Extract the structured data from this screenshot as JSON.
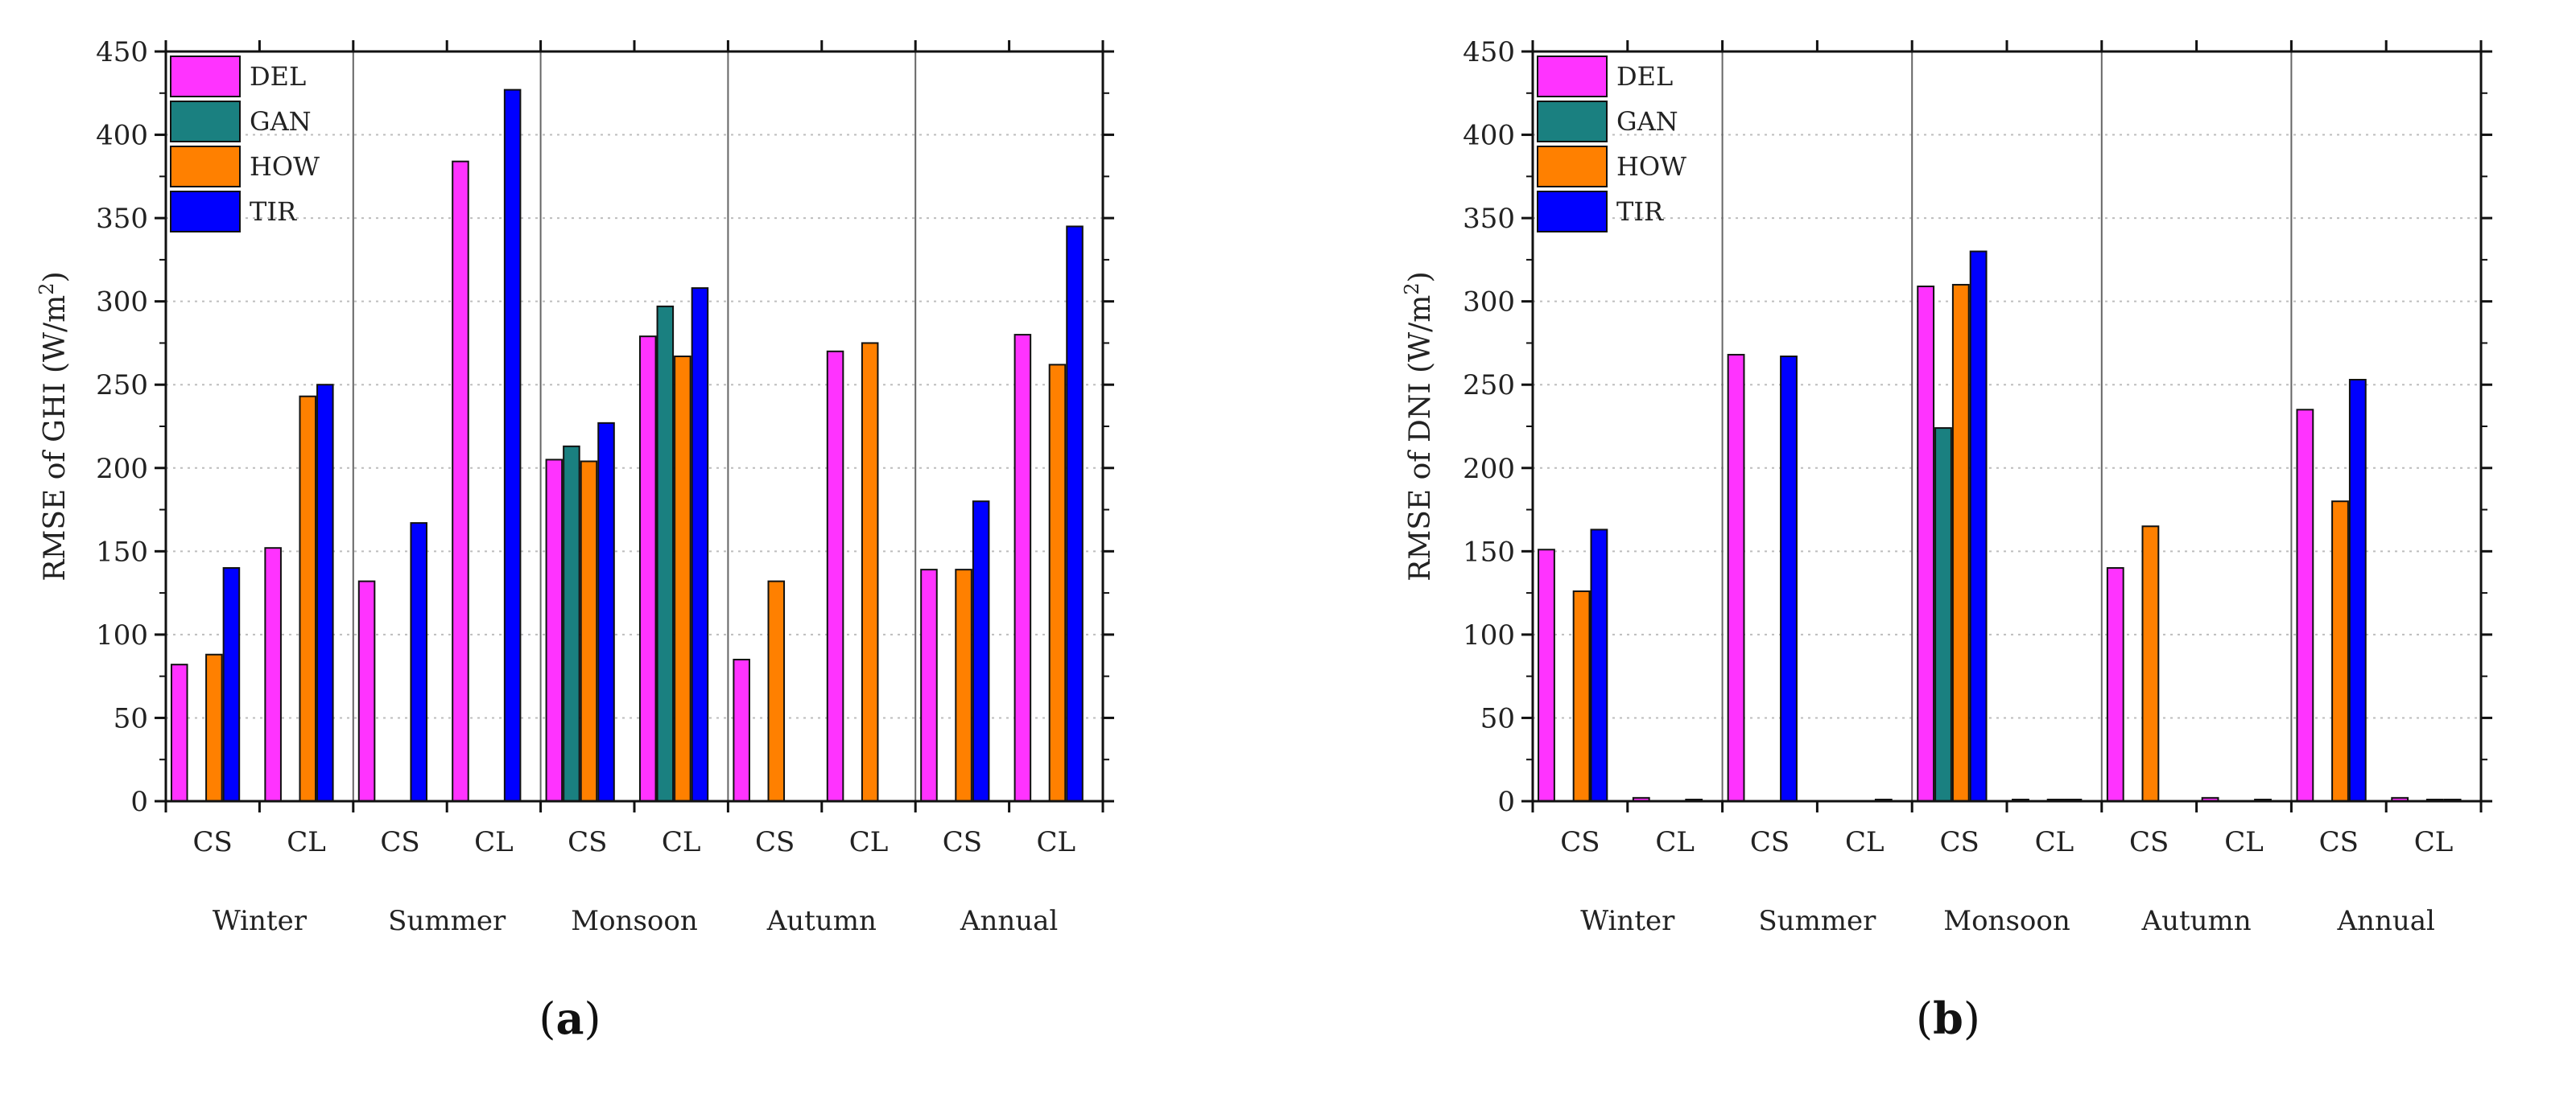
{
  "chart_data": [
    {
      "type": "bar",
      "panel_label": "a",
      "ylabel": "RMSE of GHI (W/m²)",
      "ylabel_parts": {
        "text": "RMSE of GHI (W/m",
        "sup": "2",
        "close": ")"
      },
      "ylim": [
        0,
        450
      ],
      "yticks": [
        0,
        50,
        100,
        150,
        200,
        250,
        300,
        350,
        400,
        450
      ],
      "groups": [
        "Winter",
        "Summer",
        "Monsoon",
        "Autumn",
        "Annual"
      ],
      "sub_categories": [
        "CS",
        "CL"
      ],
      "categories": [
        "CS",
        "CL",
        "CS",
        "CL",
        "CS",
        "CL",
        "CS",
        "CL",
        "CS",
        "CL"
      ],
      "grid": true,
      "legend_position": "top-left",
      "series": [
        {
          "name": "DEL",
          "color": "#ff33ff",
          "values": [
            82,
            152,
            132,
            384,
            205,
            279,
            85,
            270,
            139,
            280
          ]
        },
        {
          "name": "GAN",
          "color": "#1a8080",
          "values": [
            0,
            0,
            0,
            0,
            213,
            297,
            0,
            0,
            0,
            0
          ]
        },
        {
          "name": "HOW",
          "color": "#ff8000",
          "values": [
            88,
            243,
            0,
            0,
            204,
            267,
            132,
            275,
            139,
            262
          ]
        },
        {
          "name": "TIR",
          "color": "#0000ff",
          "values": [
            140,
            250,
            167,
            427,
            227,
            308,
            0,
            0,
            180,
            345
          ]
        }
      ]
    },
    {
      "type": "bar",
      "panel_label": "b",
      "ylabel": "RMSE of DNI (W/m²)",
      "ylabel_parts": {
        "text": "RMSE of DNI (W/m",
        "sup": "2",
        "close": ")"
      },
      "ylim": [
        0,
        450
      ],
      "yticks": [
        0,
        50,
        100,
        150,
        200,
        250,
        300,
        350,
        400,
        450
      ],
      "groups": [
        "Winter",
        "Summer",
        "Monsoon",
        "Autumn",
        "Annual"
      ],
      "sub_categories": [
        "CS",
        "CL"
      ],
      "categories": [
        "CS",
        "CL",
        "CS",
        "CL",
        "CS",
        "CL",
        "CS",
        "CL",
        "CS",
        "CL"
      ],
      "grid": true,
      "legend_position": "top-left",
      "series": [
        {
          "name": "DEL",
          "color": "#ff33ff",
          "values": [
            151,
            2,
            268,
            0,
            309,
            1,
            140,
            2,
            235,
            2
          ]
        },
        {
          "name": "GAN",
          "color": "#1a8080",
          "values": [
            0,
            0,
            0,
            0,
            224,
            0,
            0,
            0,
            0,
            0
          ]
        },
        {
          "name": "HOW",
          "color": "#ff8000",
          "values": [
            126,
            0,
            0,
            0,
            310,
            1,
            165,
            0,
            180,
            1
          ]
        },
        {
          "name": "TIR",
          "color": "#0000ff",
          "values": [
            163,
            1,
            267,
            1,
            330,
            1,
            0,
            1,
            253,
            1
          ]
        }
      ]
    }
  ]
}
